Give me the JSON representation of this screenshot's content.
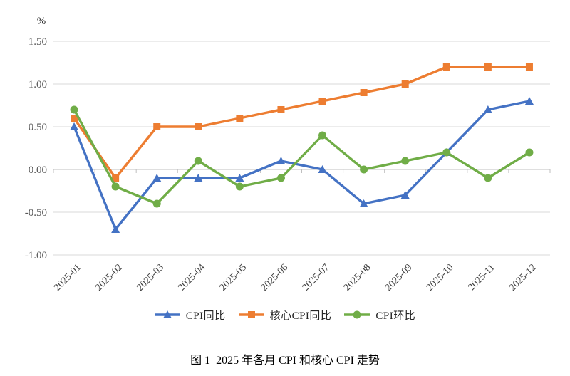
{
  "page": {
    "caption": "图 1  2025 年各月 CPI 和核心 CPI 走势"
  },
  "chart_data": {
    "type": "line",
    "title": "图 1  2025 年各月 CPI 和核心 CPI 走势",
    "unit_label": "%",
    "categories": [
      "2025-01",
      "2025-02",
      "2025-03",
      "2025-04",
      "2025-05",
      "2025-06",
      "2025-07",
      "2025-08",
      "2025-09",
      "2025-10",
      "2025-11",
      "2025-12"
    ],
    "series": [
      {
        "name": "CPI同比",
        "marker": "triangle",
        "color": "#4472C4",
        "values": [
          0.5,
          -0.7,
          -0.1,
          -0.1,
          -0.1,
          0.1,
          0.0,
          -0.4,
          -0.3,
          0.2,
          0.7,
          0.8
        ]
      },
      {
        "name": "核心CPI同比",
        "marker": "square",
        "color": "#ED7D31",
        "values": [
          0.6,
          -0.1,
          0.5,
          0.5,
          0.6,
          0.7,
          0.8,
          0.9,
          1.0,
          1.2,
          1.2,
          1.2
        ]
      },
      {
        "name": "CPI环比",
        "marker": "circle",
        "color": "#70AD47",
        "values": [
          0.7,
          -0.2,
          -0.4,
          0.1,
          -0.2,
          -0.1,
          0.4,
          0.0,
          0.1,
          0.2,
          -0.1,
          0.2
        ]
      }
    ],
    "y_axis": {
      "min": -1.0,
      "max": 1.5,
      "step": 0.5,
      "tick_labels": [
        "1.50",
        "1.00",
        "0.50",
        "0.00",
        "-0.50",
        "-1.00"
      ]
    },
    "grid": true,
    "legend_position": "bottom",
    "colors": {
      "gridline": "#D9D9D9",
      "zero_axis": "#BFBFBF",
      "y_tick_text": "#595959",
      "x_tick_text": "#3F3F3F"
    }
  }
}
